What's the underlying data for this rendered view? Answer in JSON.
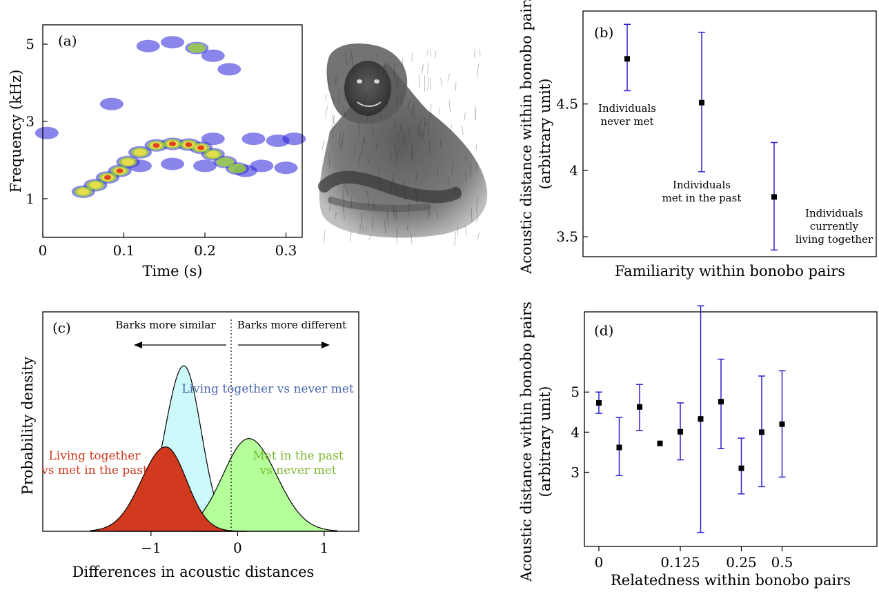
{
  "colors": {
    "errorbar": "#2d1fd0",
    "red_fill": "#d23a1f",
    "red_text": "#cc3a1e",
    "cyan_fill": "#ccf9f9",
    "blue_text": "#4a66b0",
    "green_fill": "#b4ff9a",
    "green_text": "#7db832",
    "spectro_blue": "#2a20d8",
    "spectro_green": "#9ad33a",
    "spectro_yellow": "#f0e04a",
    "spectro_red": "#e03a1e"
  },
  "illustration": {
    "subject": "bonobo drawing",
    "icon": "bonobo-illustration"
  },
  "chart_data": [
    {
      "panel": "(a)",
      "type": "heatmap",
      "xlabel": "Time (s)",
      "ylabel": "Frequency (kHz)",
      "xlim": [
        0,
        0.32
      ],
      "ylim": [
        0,
        5.5
      ],
      "xticks": [
        "0",
        "0.1",
        "0.2",
        "0.3"
      ],
      "xtick_values": [
        0,
        0.1,
        0.2,
        0.3
      ],
      "yticks": [
        "1",
        "3",
        "5"
      ],
      "ytick_values": [
        1,
        3,
        5
      ],
      "blobs": [
        {
          "t": 0.05,
          "f": 1.18,
          "level": 3
        },
        {
          "t": 0.065,
          "f": 1.35,
          "level": 3
        },
        {
          "t": 0.08,
          "f": 1.55,
          "level": 4
        },
        {
          "t": 0.095,
          "f": 1.72,
          "level": 4
        },
        {
          "t": 0.105,
          "f": 1.95,
          "level": 3
        },
        {
          "t": 0.12,
          "f": 2.2,
          "level": 3
        },
        {
          "t": 0.14,
          "f": 2.38,
          "level": 4
        },
        {
          "t": 0.16,
          "f": 2.42,
          "level": 4
        },
        {
          "t": 0.18,
          "f": 2.4,
          "level": 4
        },
        {
          "t": 0.195,
          "f": 2.32,
          "level": 4
        },
        {
          "t": 0.21,
          "f": 2.15,
          "level": 3
        },
        {
          "t": 0.225,
          "f": 1.95,
          "level": 2
        },
        {
          "t": 0.24,
          "f": 1.78,
          "level": 2
        },
        {
          "t": 0.25,
          "f": 1.72,
          "level": 1
        },
        {
          "t": 0.21,
          "f": 2.55,
          "level": 1
        },
        {
          "t": 0.26,
          "f": 2.55,
          "level": 1
        },
        {
          "t": 0.29,
          "f": 2.5,
          "level": 1
        },
        {
          "t": 0.31,
          "f": 2.55,
          "level": 1
        },
        {
          "t": 0.27,
          "f": 1.85,
          "level": 1
        },
        {
          "t": 0.3,
          "f": 1.8,
          "level": 1
        },
        {
          "t": 0.12,
          "f": 1.85,
          "level": 1
        },
        {
          "t": 0.16,
          "f": 1.9,
          "level": 1
        },
        {
          "t": 0.2,
          "f": 1.85,
          "level": 1
        },
        {
          "t": 0.085,
          "f": 3.45,
          "level": 1
        },
        {
          "t": 0.16,
          "f": 5.05,
          "level": 1
        },
        {
          "t": 0.19,
          "f": 4.9,
          "level": 2
        },
        {
          "t": 0.21,
          "f": 4.7,
          "level": 1
        },
        {
          "t": 0.23,
          "f": 4.35,
          "level": 1
        },
        {
          "t": 0.13,
          "f": 4.95,
          "level": 1
        },
        {
          "t": 0.005,
          "f": 2.7,
          "level": 1
        }
      ]
    },
    {
      "panel": "(b)",
      "type": "scatter",
      "xlabel": "Familiarity within bonobo pairs",
      "ylabel": "Acoustic distance within bonobo pairs",
      "ylabel2": "(arbitrary unit)",
      "ylim": [
        3.35,
        5.2
      ],
      "yticks": [
        "3.5",
        "4",
        "4.5"
      ],
      "ytick_values": [
        3.5,
        4,
        4.5
      ],
      "points": [
        {
          "category": "never met",
          "x": 1,
          "y": 4.84,
          "low": 4.6,
          "high": 5.1,
          "label_lines": [
            "Individuals",
            "never met"
          ]
        },
        {
          "category": "met in the past",
          "x": 2,
          "y": 4.51,
          "low": 3.99,
          "high": 5.04,
          "label_lines": [
            "Individuals",
            "met in the past"
          ]
        },
        {
          "category": "currently living together",
          "x": 3,
          "y": 3.8,
          "low": 3.4,
          "high": 4.21,
          "label_lines": [
            "Individuals",
            "currently",
            "living together"
          ]
        }
      ]
    },
    {
      "panel": "(c)",
      "type": "area",
      "xlabel": "Differences in acoustic distances",
      "ylabel": "Probability density",
      "xlim": [
        -2.25,
        1.4
      ],
      "xticks": [
        "−1",
        "0",
        "1"
      ],
      "xtick_values": [
        -1,
        0,
        1
      ],
      "arrow_left_label": "Barks more similar",
      "arrow_right_label": "Barks more different",
      "series": [
        {
          "name": "Living together vs never met",
          "name_lines": [
            "Living together vs never met"
          ],
          "color_key": "cyan_fill",
          "text_color_key": "blue_text",
          "mean": -0.62,
          "sd_left": 0.22,
          "sd_right": 0.2,
          "peak": 1.0,
          "range": [
            -1.4,
            0.1
          ]
        },
        {
          "name": "Living together vs met in the past",
          "name_lines": [
            "Living together",
            "vs met in the past"
          ],
          "color_key": "red_fill",
          "text_color_key": "red_text",
          "mean": -0.83,
          "sd_left": 0.28,
          "sd_right": 0.24,
          "peak": 0.51,
          "range": [
            -1.7,
            0.1
          ]
        },
        {
          "name": "Met in the past vs never met",
          "name_lines": [
            "Met in the past",
            "vs never met"
          ],
          "color_key": "green_fill",
          "text_color_key": "green_text",
          "mean": 0.13,
          "sd_left": 0.3,
          "sd_right": 0.32,
          "peak": 0.56,
          "range": [
            -0.5,
            1.15
          ]
        }
      ]
    },
    {
      "panel": "(d)",
      "type": "scatter",
      "xlabel": "Relatedness within bonobo pairs",
      "ylabel": "Acoustic distance within bonobo pairs",
      "ylabel2": "(arbitrary unit)",
      "ylim": [
        1.15,
        7.0
      ],
      "yticks": [
        "3",
        "4",
        "5"
      ],
      "ytick_values": [
        3,
        4,
        5
      ],
      "xticks": [
        "0",
        "0.125",
        "0.25",
        "0.5"
      ],
      "xtick_positions": [
        0,
        4,
        7,
        9
      ],
      "points": [
        {
          "x": 0,
          "y": 4.73,
          "low": 4.47,
          "high": 5.0
        },
        {
          "x": 1,
          "y": 3.62,
          "low": 2.92,
          "high": 4.37
        },
        {
          "x": 2,
          "y": 4.63,
          "low": 4.04,
          "high": 5.19
        },
        {
          "x": 3,
          "y": 3.72,
          "low": 3.72,
          "high": 3.72
        },
        {
          "x": 4,
          "y": 4.01,
          "low": 3.31,
          "high": 4.73
        },
        {
          "x": 5,
          "y": 4.33,
          "low": 1.5,
          "high": 7.15
        },
        {
          "x": 6,
          "y": 4.76,
          "low": 3.59,
          "high": 5.82
        },
        {
          "x": 7,
          "y": 3.1,
          "low": 2.46,
          "high": 3.85
        },
        {
          "x": 8,
          "y": 4.0,
          "low": 2.64,
          "high": 5.4
        },
        {
          "x": 9,
          "y": 4.2,
          "low": 2.88,
          "high": 5.53
        }
      ]
    }
  ]
}
